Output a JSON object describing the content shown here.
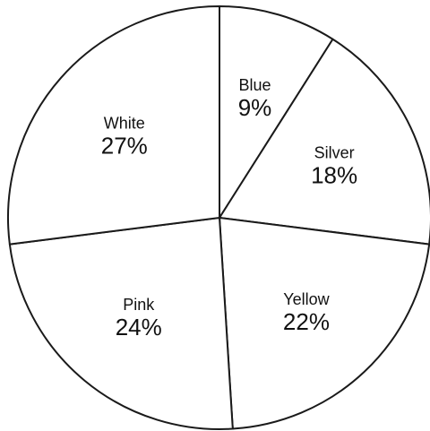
{
  "chart_data": {
    "type": "pie",
    "start_angle_deg": 0,
    "direction": "clockwise",
    "slices": [
      {
        "label": "Blue",
        "value": 9,
        "value_label": "9%",
        "color": "#ffffff"
      },
      {
        "label": "Silver",
        "value": 18,
        "value_label": "18%",
        "color": "#ffffff"
      },
      {
        "label": "Yellow",
        "value": 22,
        "value_label": "22%",
        "color": "#ffffff"
      },
      {
        "label": "Pink",
        "value": 24,
        "value_label": "24%",
        "color": "#ffffff"
      },
      {
        "label": "White",
        "value": 27,
        "value_label": "27%",
        "color": "#ffffff"
      }
    ],
    "stroke_color": "#1a1a1a",
    "legend": "none"
  }
}
